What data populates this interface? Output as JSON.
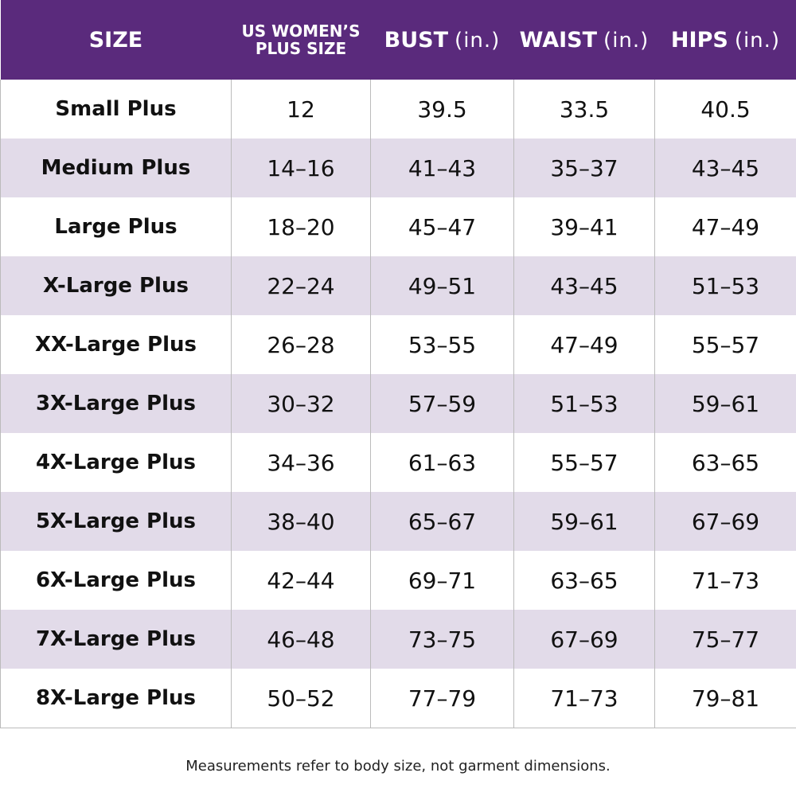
{
  "header": [
    {
      "label": "SIZE"
    },
    {
      "lines": [
        "US WOMEN’S",
        "PLUS SIZE"
      ]
    },
    {
      "label": "BUST",
      "unit": "(in.)"
    },
    {
      "label": "WAIST",
      "unit": "(in.)"
    },
    {
      "label": "HIPS",
      "unit": "(in.)"
    }
  ],
  "rows": [
    [
      "Small Plus",
      "12",
      "39.5",
      "33.5",
      "40.5"
    ],
    [
      "Medium Plus",
      "14–16",
      "41–43",
      "35–37",
      "43–45"
    ],
    [
      "Large Plus",
      "18–20",
      "45–47",
      "39–41",
      "47–49"
    ],
    [
      "X-Large Plus",
      "22–24",
      "49–51",
      "43–45",
      "51–53"
    ],
    [
      "XX-Large Plus",
      "26–28",
      "53–55",
      "47–49",
      "55–57"
    ],
    [
      "3X-Large Plus",
      "30–32",
      "57–59",
      "51–53",
      "59–61"
    ],
    [
      "4X-Large Plus",
      "34–36",
      "61–63",
      "55–57",
      "63–65"
    ],
    [
      "5X-Large Plus",
      "38–40",
      "65–67",
      "59–61",
      "67–69"
    ],
    [
      "6X-Large Plus",
      "42–44",
      "69–71",
      "63–65",
      "71–73"
    ],
    [
      "7X-Large Plus",
      "46–48",
      "73–75",
      "67–69",
      "75–77"
    ],
    [
      "8X-Large Plus",
      "50–52",
      "77–79",
      "71–73",
      "79–81"
    ]
  ],
  "footer": "Measurements refer to body size, not garment dimensions."
}
